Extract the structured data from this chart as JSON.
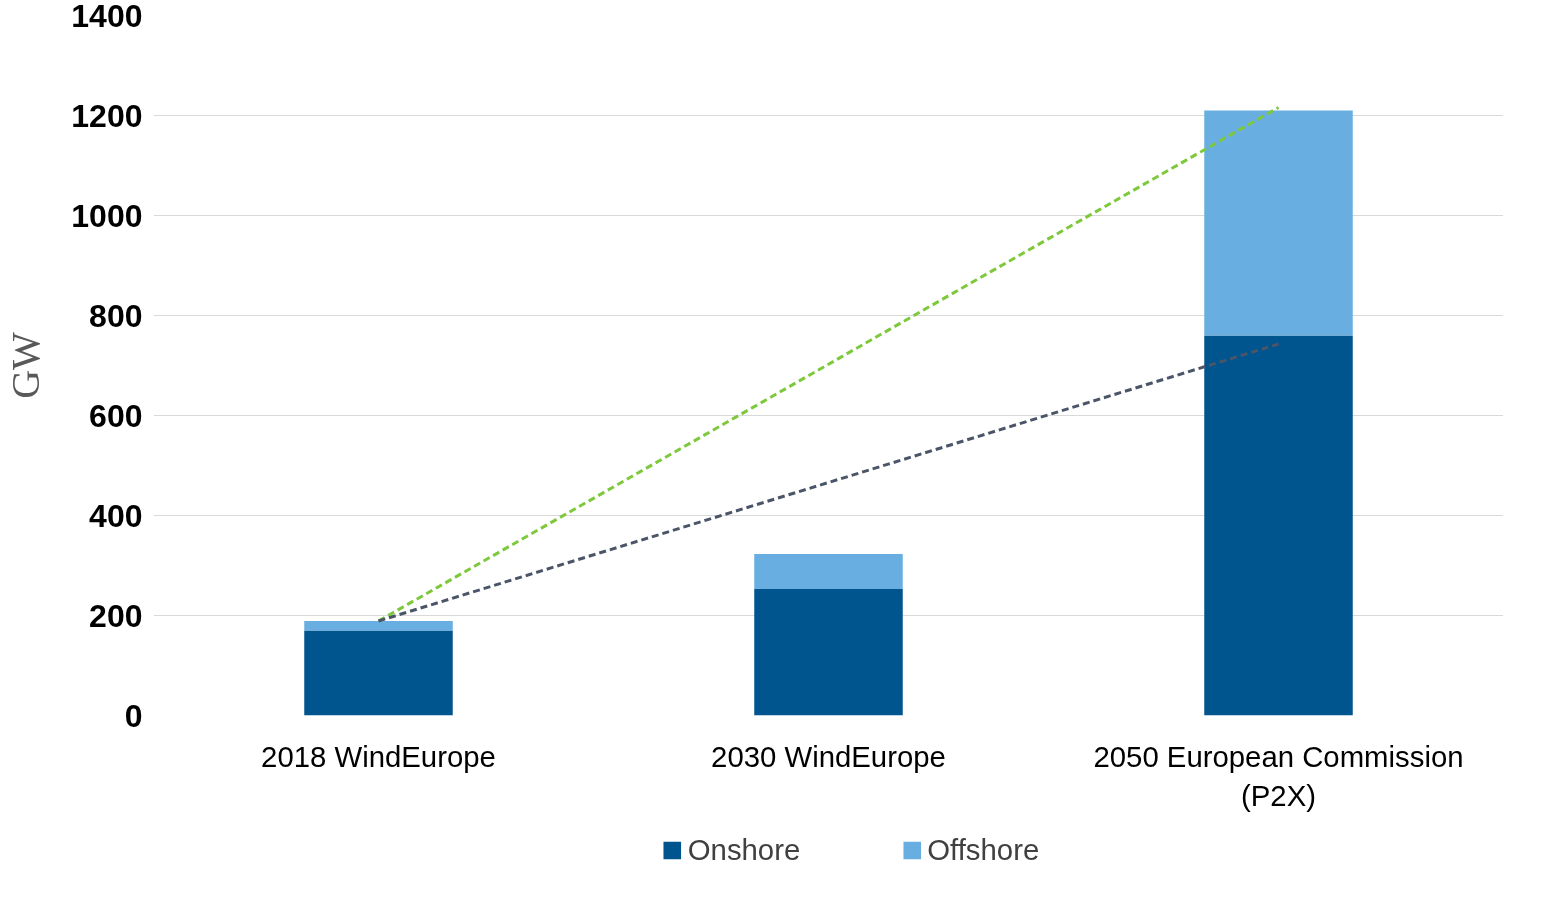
{
  "chart_data": {
    "type": "bar",
    "stacked": true,
    "ylabel": "GW",
    "categories": [
      "2018 WindEurope",
      "2030 WindEurope",
      "2050 European Commission\n(P2X)"
    ],
    "series": [
      {
        "name": "Onshore",
        "color": "#00558f",
        "values": [
          170,
          253,
          760
        ]
      },
      {
        "name": "Offshore",
        "color": "#69aee0",
        "values": [
          19,
          70,
          450
        ]
      },
      {
        "type": "line",
        "color": "#7dc93b",
        "line_style": "dashed",
        "x": [
          "2018 WindEurope",
          "2050 European Commission\n(P2X)"
        ],
        "values": [
          189,
          1216
        ]
      },
      {
        "type": "line",
        "color": "#4a5568",
        "line_style": "dashed",
        "x": [
          "2018 WindEurope",
          "2050 European Commission\n(P2X)"
        ],
        "values": [
          189,
          743
        ]
      }
    ],
    "ylim": [
      0,
      1400
    ],
    "yticks": [
      0,
      200,
      400,
      600,
      800,
      1000,
      1200,
      1400
    ],
    "grid": "y",
    "legend": "bottom"
  }
}
